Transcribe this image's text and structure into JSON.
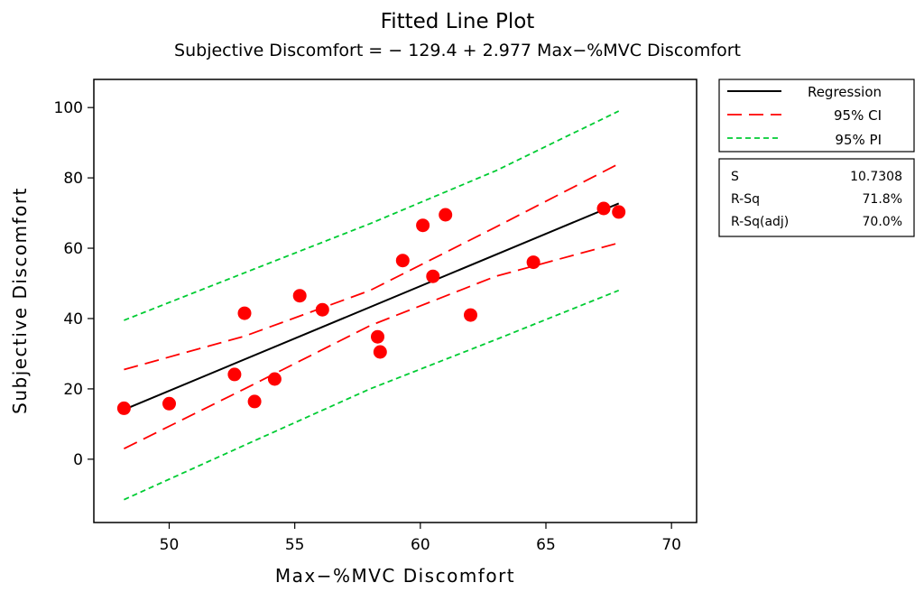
{
  "chart_data": {
    "type": "scatter",
    "title": "Fitted Line Plot",
    "subtitle": "Subjective Discomfort =  − 129.4 + 2.977 Max−%MVC Discomfort",
    "xlabel": "Max−%MVC Discomfort",
    "ylabel": "Subjective Discomfort",
    "xlim": [
      47,
      71
    ],
    "ylim": [
      -18,
      108
    ],
    "xticks": [
      50,
      55,
      60,
      65,
      70
    ],
    "yticks": [
      0,
      20,
      40,
      60,
      80,
      100
    ],
    "grid": false,
    "points": [
      {
        "x": 48.2,
        "y": 14.5
      },
      {
        "x": 50.0,
        "y": 15.8
      },
      {
        "x": 52.6,
        "y": 24.1
      },
      {
        "x": 53.0,
        "y": 41.5
      },
      {
        "x": 53.4,
        "y": 16.4
      },
      {
        "x": 54.2,
        "y": 22.8
      },
      {
        "x": 55.2,
        "y": 46.5
      },
      {
        "x": 56.1,
        "y": 42.5
      },
      {
        "x": 58.3,
        "y": 34.8
      },
      {
        "x": 58.4,
        "y": 30.5
      },
      {
        "x": 59.3,
        "y": 56.5
      },
      {
        "x": 60.1,
        "y": 66.5
      },
      {
        "x": 60.5,
        "y": 52.0
      },
      {
        "x": 61.0,
        "y": 69.5
      },
      {
        "x": 62.0,
        "y": 41.0
      },
      {
        "x": 64.5,
        "y": 56.0
      },
      {
        "x": 67.3,
        "y": 71.3
      },
      {
        "x": 67.9,
        "y": 70.3
      }
    ],
    "regression": {
      "intercept": -129.4,
      "slope": 2.977,
      "x_range": [
        48.2,
        67.9
      ]
    },
    "ci_95": {
      "lower": [
        [
          48.2,
          3
        ],
        [
          53,
          20
        ],
        [
          58,
          38
        ],
        [
          63,
          52
        ],
        [
          67.9,
          61.5
        ]
      ],
      "upper": [
        [
          48.2,
          25.5
        ],
        [
          53,
          35
        ],
        [
          58,
          48
        ],
        [
          63,
          66
        ],
        [
          67.9,
          84
        ]
      ]
    },
    "pi_95": {
      "lower": [
        [
          48.2,
          -11.5
        ],
        [
          53,
          4
        ],
        [
          58,
          20
        ],
        [
          63,
          34
        ],
        [
          67.9,
          48
        ]
      ],
      "upper": [
        [
          48.2,
          39.5
        ],
        [
          53,
          53
        ],
        [
          58,
          67
        ],
        [
          63,
          82
        ],
        [
          67.9,
          99
        ]
      ]
    },
    "colors": {
      "points": "#ff0000",
      "regression": "#000000",
      "ci": "#ff0000",
      "pi": "#00cc33"
    },
    "legend": {
      "position": "right",
      "entries": [
        {
          "label": "Regression",
          "style": "solid",
          "color": "#000000"
        },
        {
          "label": "95% CI",
          "style": "dashed",
          "color": "#ff0000"
        },
        {
          "label": "95% PI",
          "style": "dotted",
          "color": "#00cc33"
        }
      ]
    },
    "stats": [
      {
        "label": "S",
        "value": "10.7308"
      },
      {
        "label": "R-Sq",
        "value": "71.8%"
      },
      {
        "label": "R-Sq(adj)",
        "value": "70.0%"
      }
    ]
  }
}
